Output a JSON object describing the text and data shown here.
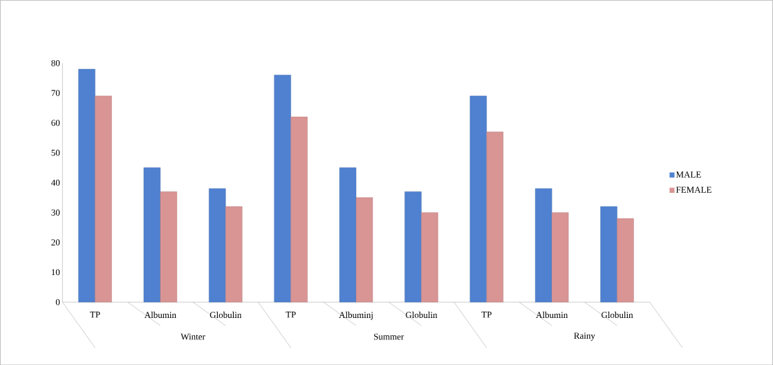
{
  "chart_data": {
    "type": "bar",
    "categories": [
      "TP",
      "Albumin",
      "Globulin",
      "TP",
      "Albuminj",
      "Globulin",
      "TP",
      "Albumin",
      "Globulin"
    ],
    "series": [
      {
        "name": "MALE",
        "color": "#4f81d0",
        "values": [
          78,
          45,
          38,
          76,
          45,
          37,
          69,
          38,
          32
        ]
      },
      {
        "name": "FEMALE",
        "color": "#d99494",
        "values": [
          69,
          37,
          32,
          62,
          35,
          30,
          57,
          30,
          28
        ]
      }
    ],
    "annotations": [
      "Winter",
      "Summer",
      "Rainy"
    ],
    "ylim": [
      0,
      80
    ],
    "yticks": [
      0,
      10,
      20,
      30,
      40,
      50,
      60,
      70,
      80
    ],
    "grid": false,
    "legend": "right"
  }
}
